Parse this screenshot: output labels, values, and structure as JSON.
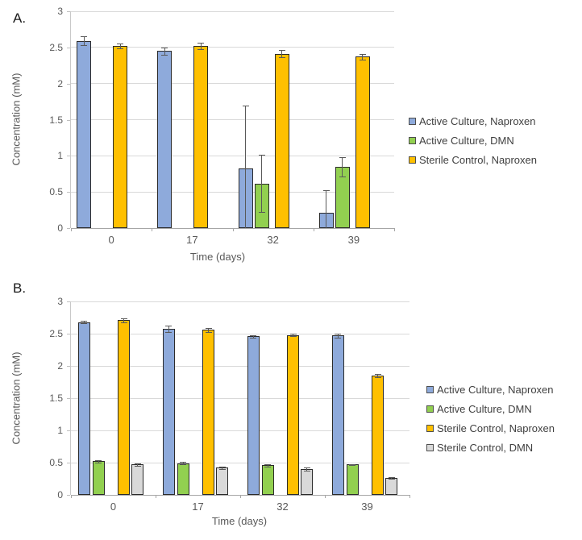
{
  "page_title": "Naproxen biodegradation bar charts",
  "chart_data": [
    {
      "type": "bar",
      "panel_label": "A.",
      "xlabel": "Time (days)",
      "ylabel": "Concentration (mM)",
      "ylim": [
        0,
        3
      ],
      "ytick_step": 0.5,
      "yticks": [
        "0",
        "0.5",
        "1",
        "1.5",
        "2",
        "2.5",
        "3"
      ],
      "categories": [
        "0",
        "17",
        "32",
        "39"
      ],
      "grid": true,
      "legend_position": "right",
      "series": [
        {
          "name": "Active Culture, Naproxen",
          "color": "#8EAADB",
          "values": [
            2.59,
            2.45,
            0.83,
            0.21
          ],
          "err_up": [
            0.06,
            0.05,
            0.87,
            0.31
          ],
          "err_down": [
            0.06,
            0.05,
            0.83,
            0.21
          ]
        },
        {
          "name": "Active Culture, DMN",
          "color": "#92D050",
          "values": [
            0,
            0,
            0.61,
            0.85
          ],
          "err_up": [
            0,
            0,
            0.4,
            0.13
          ],
          "err_down": [
            0,
            0,
            0.39,
            0.14
          ]
        },
        {
          "name": "Sterile Control, Naproxen",
          "color": "#FFC000",
          "values": [
            2.52,
            2.52,
            2.41,
            2.37
          ],
          "err_up": [
            0.03,
            0.04,
            0.05,
            0.04
          ],
          "err_down": [
            0.03,
            0.04,
            0.05,
            0.04
          ]
        }
      ]
    },
    {
      "type": "bar",
      "panel_label": "B.",
      "xlabel": "Time (days)",
      "ylabel": "Concentration (mM)",
      "ylim": [
        0,
        3
      ],
      "ytick_step": 0.5,
      "yticks": [
        "0",
        "0.5",
        "1",
        "1.5",
        "2",
        "2.5",
        "3"
      ],
      "categories": [
        "0",
        "17",
        "32",
        "39"
      ],
      "grid": true,
      "legend_position": "right",
      "series": [
        {
          "name": "Active Culture, Naproxen",
          "color": "#8EAADB",
          "values": [
            2.68,
            2.57,
            2.46,
            2.47
          ],
          "err_up": [
            0.02,
            0.05,
            0.02,
            0.03
          ],
          "err_down": [
            0.02,
            0.05,
            0.02,
            0.03
          ]
        },
        {
          "name": "Active Culture, DMN",
          "color": "#92D050",
          "values": [
            0.52,
            0.49,
            0.46,
            0.47
          ],
          "err_up": [
            0.02,
            0.02,
            0.02,
            0.01
          ],
          "err_down": [
            0.02,
            0.02,
            0.02,
            0.01
          ]
        },
        {
          "name": "Sterile Control, Naproxen",
          "color": "#FFC000",
          "values": [
            2.71,
            2.56,
            2.48,
            1.85
          ],
          "err_up": [
            0.03,
            0.03,
            0.02,
            0.02
          ],
          "err_down": [
            0.03,
            0.03,
            0.02,
            0.02
          ]
        },
        {
          "name": "Sterile Control, DMN",
          "color": "#D9D9D9",
          "values": [
            0.47,
            0.42,
            0.4,
            0.26
          ],
          "err_up": [
            0.02,
            0.02,
            0.02,
            0.01
          ],
          "err_down": [
            0.02,
            0.02,
            0.02,
            0.01
          ]
        }
      ]
    }
  ],
  "colors": {
    "bar_border": "#2b2b2b",
    "error_bar": "#595959",
    "gridline": "#d9d9d9",
    "axis_text": "#595959",
    "legend_text": "#404040"
  }
}
